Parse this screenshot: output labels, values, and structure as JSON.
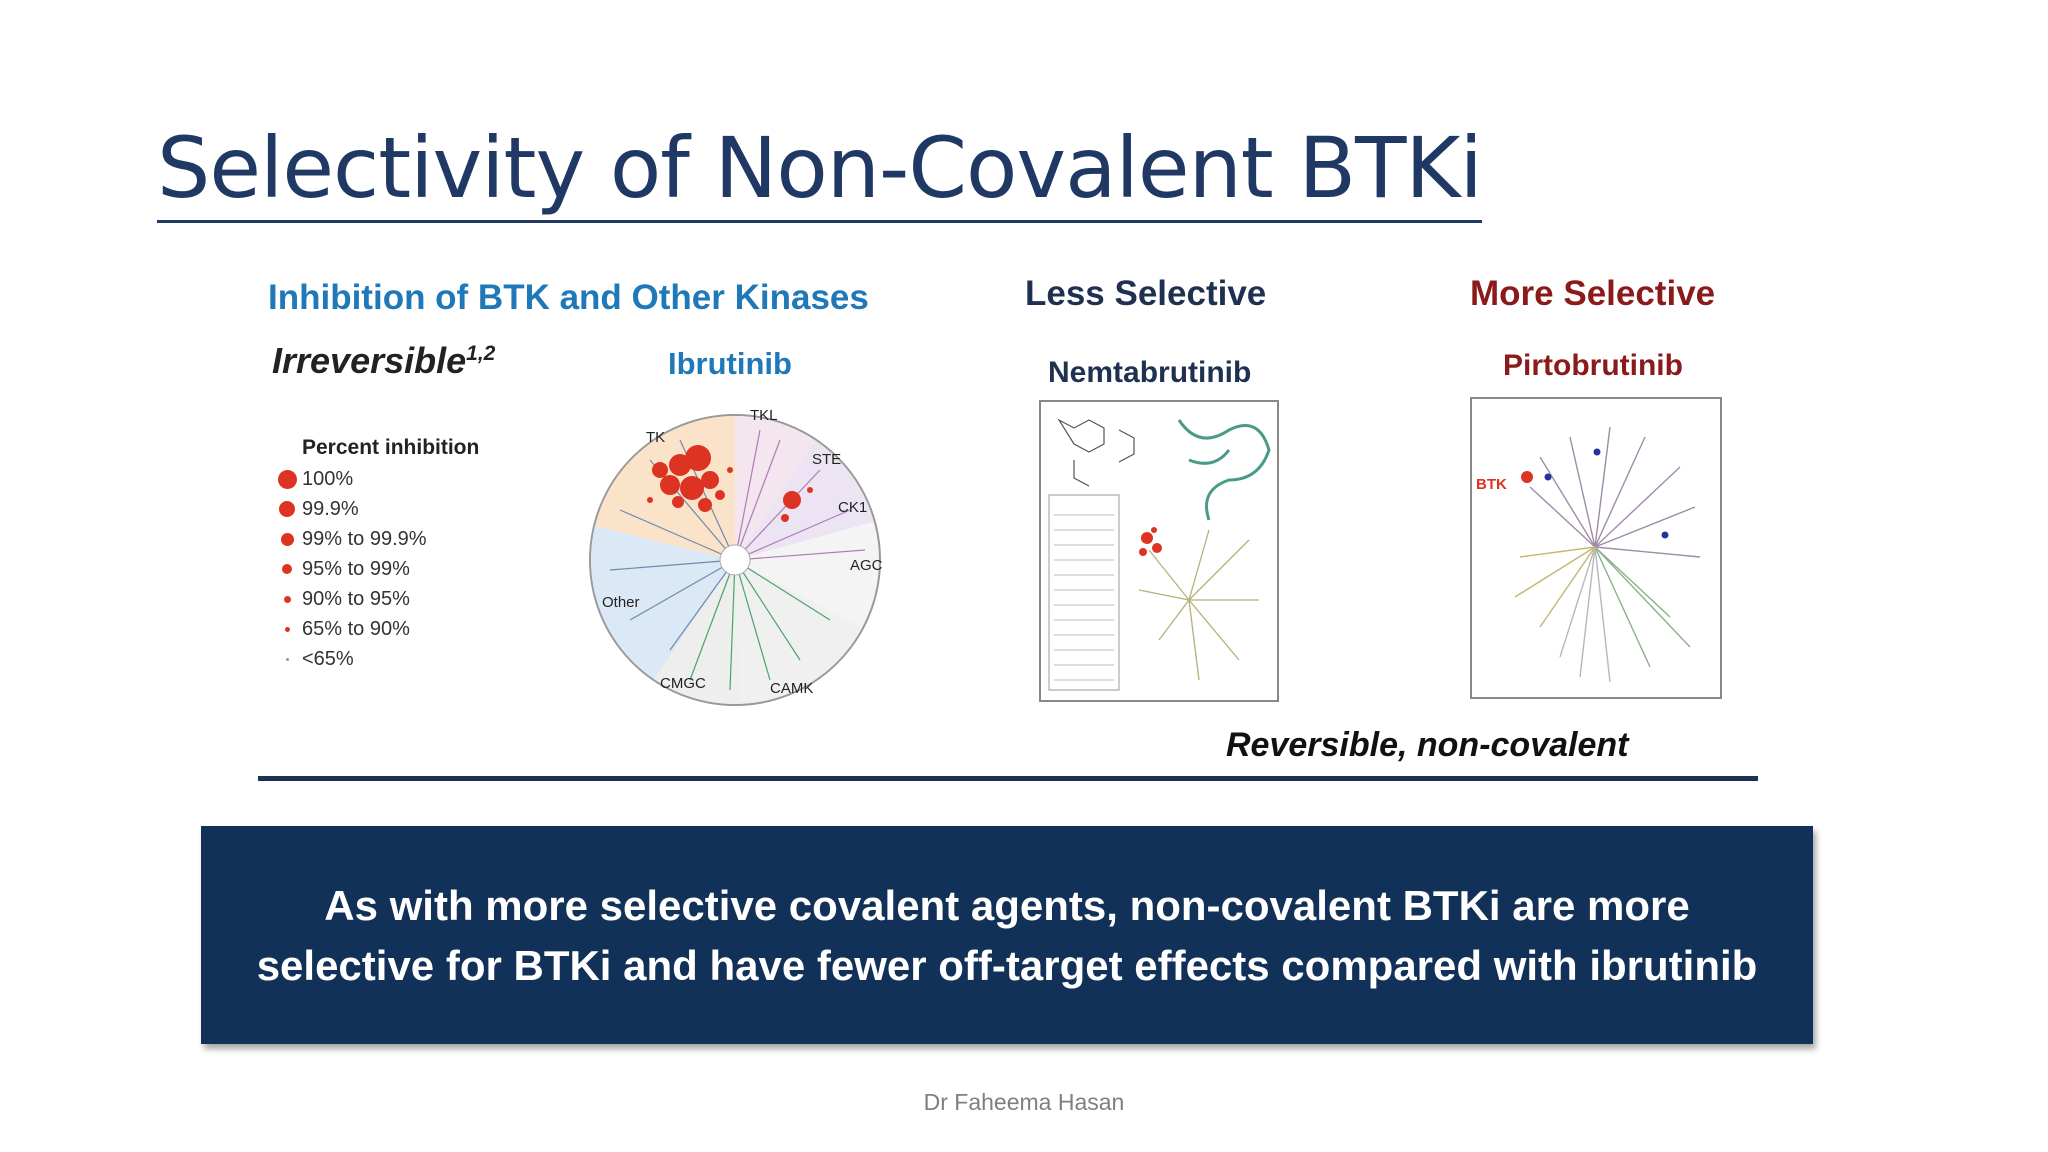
{
  "slide": {
    "title": "Selectivity of Non-Covalent BTKi",
    "footer": "Dr Faheema Hasan"
  },
  "left_panel": {
    "heading": "Inhibition of BTK and Other Kinases",
    "irreversible": "Irreversible",
    "irreversible_sup": "1,2",
    "drug": "Ibrutinib",
    "legend": {
      "title": "Percent inhibition",
      "items": [
        "100%",
        "99.9%",
        "99% to 99.9%",
        "95% to 99%",
        "90% to 95%",
        "65% to 90%",
        "<65%"
      ]
    },
    "kinome_groups": [
      "TK",
      "TKL",
      "STE",
      "CK1",
      "AGC",
      "CAMK",
      "CMGC",
      "Other"
    ]
  },
  "middle_panel": {
    "heading": "Less Selective",
    "drug": "Nemtabrutinib"
  },
  "right_panel": {
    "heading": "More Selective",
    "drug": "Pirtobrutinib",
    "marker_label": "BTK"
  },
  "reversible_label": "Reversible, non-covalent",
  "banner": {
    "line1": "As with more selective covalent agents, non-covalent BTKi are more",
    "line2": "selective for BTKi and have fewer off-target effects compared with ibrutinib"
  },
  "colors": {
    "title": "#1f3864",
    "heading_blue": "#1f78b8",
    "heading_dark": "#1f3050",
    "heading_red": "#8b1a1a",
    "banner_bg": "#113158",
    "inhibition_dot": "#dd3322"
  }
}
